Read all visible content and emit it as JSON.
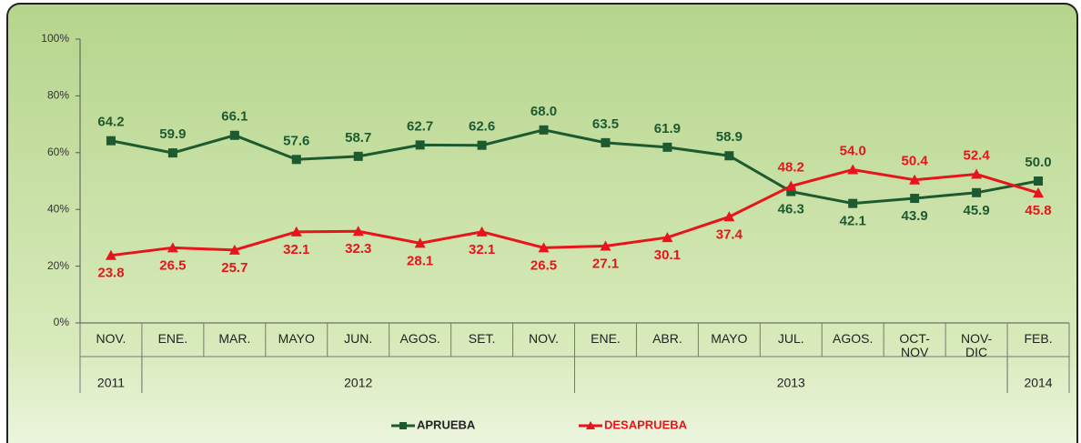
{
  "chart_data": {
    "type": "line",
    "categories": [
      "NOV.",
      "ENE.",
      "MAR.",
      "MAYO",
      "JUN.",
      "AGOS.",
      "SET.",
      "NOV.",
      "ENE.",
      "ABR.",
      "MAYO",
      "JUL.",
      "AGOS.",
      "OCT-\nNOV",
      "NOV-\nDIC",
      "FEB."
    ],
    "year_groups": [
      {
        "label": "2011",
        "span": 1
      },
      {
        "label": "2012",
        "span": 7
      },
      {
        "label": "2013",
        "span": 7
      },
      {
        "label": "2014",
        "span": 1
      }
    ],
    "series": [
      {
        "name": "APRUEBA",
        "color": "#1e5a30",
        "marker": "square",
        "values": [
          64.2,
          59.9,
          66.1,
          57.6,
          58.7,
          62.7,
          62.6,
          68.0,
          63.5,
          61.9,
          58.9,
          46.3,
          42.1,
          43.9,
          45.9,
          50.0
        ],
        "value_labels": [
          "64.2",
          "59.9",
          "66.1",
          "57.6",
          "58.7",
          "62.7",
          "62.6",
          "68.0",
          "63.5",
          "61.9",
          "58.9",
          "46.3",
          "42.1",
          "43.9",
          "45.9",
          "50.0"
        ]
      },
      {
        "name": "DESAPRUEBA",
        "color": "#e8141c",
        "marker": "triangle",
        "values": [
          23.8,
          26.5,
          25.7,
          32.1,
          32.3,
          28.1,
          32.1,
          26.5,
          27.1,
          30.1,
          37.4,
          48.2,
          54.0,
          50.4,
          52.4,
          45.8
        ],
        "value_labels": [
          "23.8",
          "26.5",
          "25.7",
          "32.1",
          "32.3",
          "28.1",
          "32.1",
          "26.5",
          "27.1",
          "30.1",
          "37.4",
          "48.2",
          "54.0",
          "50.4",
          "52.4",
          "45.8"
        ]
      }
    ],
    "ylim": [
      0,
      100
    ],
    "yticks": [
      {
        "value": 0,
        "label": "0%"
      },
      {
        "value": 20,
        "label": "20%"
      },
      {
        "value": 40,
        "label": "40%"
      },
      {
        "value": 60,
        "label": "60%"
      },
      {
        "value": 80,
        "label": "80%"
      },
      {
        "value": 100,
        "label": "100%"
      }
    ],
    "grid": false
  }
}
